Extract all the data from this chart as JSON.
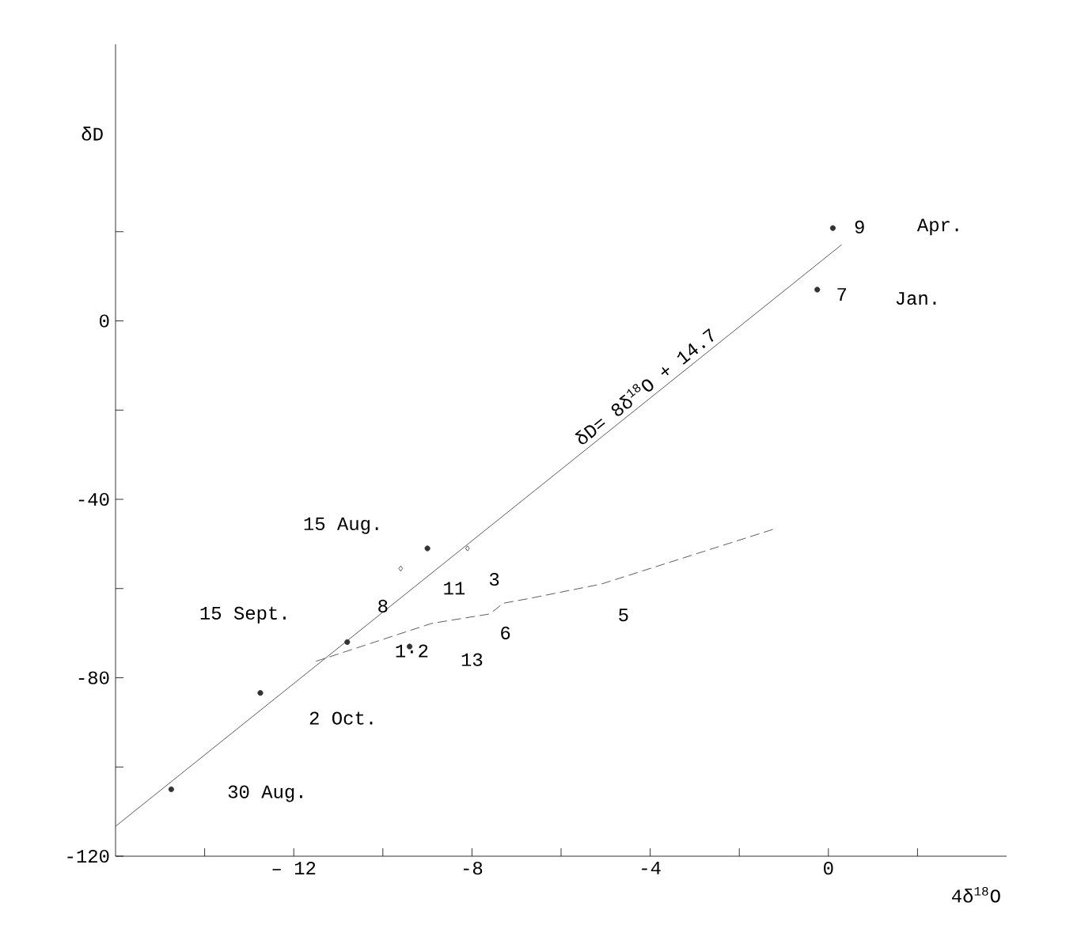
{
  "chart_data": {
    "type": "scatter",
    "xlabel": "4δ$^{18}$O",
    "ylabel": "δD",
    "xlim": [
      -16,
      4
    ],
    "ylim": [
      -120,
      62
    ],
    "xticks": [
      {
        "value": -14,
        "label": null
      },
      {
        "value": -12,
        "label": "– 12"
      },
      {
        "value": -10,
        "label": null
      },
      -8,
      {
        "value": -6,
        "label": null
      },
      -4,
      {
        "value": -2,
        "label": null
      },
      0,
      {
        "value": 2,
        "label": null
      }
    ],
    "yticks": [
      -120,
      {
        "value": -100,
        "label": null
      },
      -80,
      {
        "value": -60,
        "label": null
      },
      -40,
      {
        "value": -20,
        "label": null
      },
      0,
      {
        "value": 20,
        "label": null
      }
    ],
    "grid": false,
    "series": [
      {
        "type": "line",
        "color": "#333333",
        "line_style": "solid",
        "marker": "none",
        "x": [
          -16,
          0.3
        ],
        "values": [
          -113.3,
          17.1
        ]
      },
      {
        "type": "line",
        "color": "#333333",
        "line_style": "dashed",
        "marker": "none",
        "x": [
          -11.5,
          -8.9,
          -7.6,
          -7.3,
          -6.7,
          -5.1,
          -1.2
        ],
        "values": [
          -76.3,
          -67.8,
          -65.7,
          -63.3,
          -62.2,
          -59,
          -46.6
        ]
      },
      {
        "color": "#333333",
        "marker": "circle",
        "x": [
          0.1,
          -0.25,
          -9.0,
          -12.75,
          -14.75,
          -10.8,
          -9.4
        ],
        "values": [
          20.8,
          7,
          -51,
          -83.4,
          -105,
          -72,
          -73
        ]
      },
      {
        "color": "#333333",
        "marker": "diamond",
        "x": [
          -9.6,
          -8.1
        ],
        "values": [
          -55.5,
          -51
        ]
      }
    ],
    "annotations": [
      "δD= 8δ$^{18}$O + 14.7",
      "9",
      "Apr.",
      "7",
      "Jan.",
      "15 Aug.",
      "15 Sept.",
      "2 Oct.",
      "30 Aug.",
      "8",
      "1·2",
      "11",
      "3",
      "13",
      "6",
      "5"
    ]
  }
}
